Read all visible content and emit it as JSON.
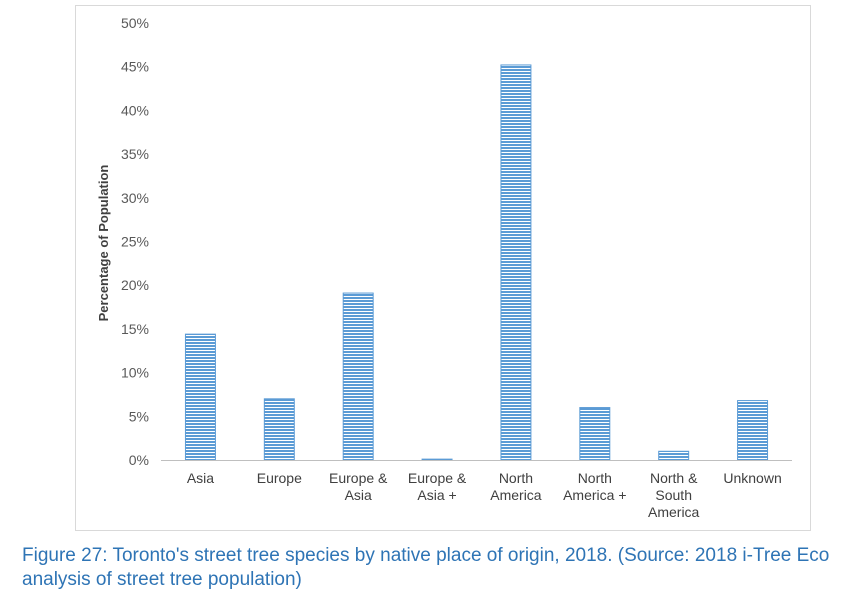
{
  "chart_data": {
    "type": "bar",
    "title": "",
    "xlabel": "",
    "ylabel": "Percentage of Population",
    "ylim": [
      0,
      50
    ],
    "y_ticks": [
      "0%",
      "5%",
      "10%",
      "15%",
      "20%",
      "25%",
      "30%",
      "35%",
      "40%",
      "45%",
      "50%"
    ],
    "categories": [
      [
        "Asia"
      ],
      [
        "Europe"
      ],
      [
        "Europe &",
        "Asia"
      ],
      [
        "Europe &",
        "Asia +"
      ],
      [
        "North",
        "America"
      ],
      [
        "North",
        "America +"
      ],
      [
        "North &",
        "South",
        "America"
      ],
      [
        "Unknown"
      ]
    ],
    "values": [
      14.4,
      7.0,
      19.1,
      0.1,
      45.2,
      6.0,
      1.0,
      6.8
    ],
    "bar_color": "#5b9bd5",
    "grid": false
  },
  "caption": "Figure 27: Toronto's street tree species by native place of origin, 2018. (Source: 2018 i-Tree Eco analysis of street tree population)"
}
